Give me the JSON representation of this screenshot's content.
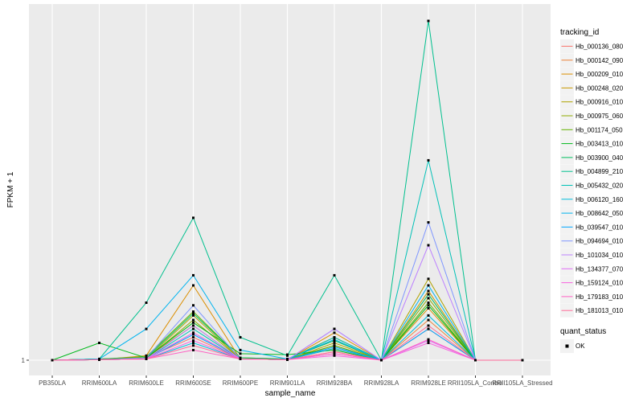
{
  "chart_data": {
    "type": "line",
    "title": "",
    "xlabel": "sample_name",
    "ylabel": "FPKM + 1",
    "y_tick_labels": [
      "1"
    ],
    "y_scale": "log",
    "categories": [
      "PB350LA",
      "RRIM600LA",
      "RRIM600LE",
      "RRIM600SE",
      "RRIM600PE",
      "RRIM901LA",
      "RRIM928BA",
      "RRIM928LA",
      "RRIM928LE",
      "RRII105LA_Control",
      "RRII105LA_Stressed"
    ],
    "legend_title": "tracking_id",
    "legend2_title": "quant_status",
    "legend2_items": [
      "OK"
    ],
    "series": [
      {
        "name": "Hb_000136_080",
        "color": "#F8766D",
        "values": [
          1,
          1.05,
          1.1,
          2.5,
          1.05,
          1.02,
          1.4,
          1,
          3.5,
          1,
          1
        ]
      },
      {
        "name": "Hb_000142_090",
        "color": "#EC8239",
        "values": [
          1,
          1.02,
          1.05,
          3,
          1.05,
          1.02,
          1.6,
          1,
          5,
          1,
          1
        ]
      },
      {
        "name": "Hb_000209_010",
        "color": "#DB8E00",
        "values": [
          1,
          1.02,
          1.2,
          20,
          1.05,
          1.02,
          3,
          1,
          8,
          1,
          1
        ]
      },
      {
        "name": "Hb_000248_020",
        "color": "#C79800",
        "values": [
          1,
          1.05,
          1.1,
          4,
          1.05,
          1.05,
          2.5,
          1,
          16,
          1,
          1
        ]
      },
      {
        "name": "Hb_000916_010",
        "color": "#AEA200",
        "values": [
          1,
          1.02,
          1.05,
          6,
          1.05,
          1.02,
          2,
          1,
          26,
          1,
          1
        ]
      },
      {
        "name": "Hb_000975_060",
        "color": "#8FAA00",
        "values": [
          1,
          1.02,
          1.05,
          5,
          1.05,
          1.02,
          1.8,
          1,
          12,
          1,
          1
        ]
      },
      {
        "name": "Hb_001174_050",
        "color": "#64B200",
        "values": [
          1,
          1.05,
          1.15,
          7,
          1.1,
          1.05,
          1.8,
          1,
          10,
          1,
          1
        ]
      },
      {
        "name": "Hb_003413_010",
        "color": "#00B81B",
        "values": [
          1,
          2,
          1.1,
          4.5,
          1.3,
          1.25,
          1.5,
          1,
          9,
          1,
          1
        ]
      },
      {
        "name": "Hb_003900_040",
        "color": "#00BD5C",
        "values": [
          1,
          1.05,
          1.1,
          6.5,
          1.1,
          1.05,
          2.2,
          1,
          14,
          1,
          1
        ]
      },
      {
        "name": "Hb_004899_210",
        "color": "#00C08E",
        "values": [
          1,
          1.05,
          10,
          300,
          2.5,
          1.2,
          30,
          1,
          800000,
          1,
          1
        ]
      },
      {
        "name": "Hb_005432_020",
        "color": "#00C1B7",
        "values": [
          1,
          1.02,
          1.05,
          3.5,
          1.05,
          1.02,
          2.5,
          1,
          3000,
          1,
          1
        ]
      },
      {
        "name": "Hb_006120_160",
        "color": "#00BDDC",
        "values": [
          1,
          1.02,
          1.05,
          2,
          1.05,
          1.02,
          1.6,
          1,
          6,
          1,
          1
        ]
      },
      {
        "name": "Hb_008642_050",
        "color": "#00B4EF",
        "values": [
          1,
          1.05,
          3.5,
          30,
          1.5,
          1.05,
          2.3,
          1,
          20,
          1,
          1
        ]
      },
      {
        "name": "Hb_039547_010",
        "color": "#00A5FF",
        "values": [
          1,
          1.02,
          1.05,
          2.8,
          1.05,
          1.02,
          1.7,
          1,
          3.5,
          1,
          1
        ]
      },
      {
        "name": "Hb_094694_010",
        "color": "#7F96FF",
        "values": [
          1,
          1.02,
          1.1,
          9,
          1.05,
          1.02,
          3.5,
          1,
          250,
          1,
          1
        ]
      },
      {
        "name": "Hb_101034_010",
        "color": "#BC81FF",
        "values": [
          1,
          1.02,
          1.05,
          4,
          1.05,
          1.02,
          3.5,
          1,
          100,
          1,
          1
        ]
      },
      {
        "name": "Hb_134377_070",
        "color": "#E16EF7",
        "values": [
          1,
          1.02,
          1.05,
          3,
          1.05,
          1.02,
          1.3,
          1,
          2.2,
          1,
          1
        ]
      },
      {
        "name": "Hb_159124_010",
        "color": "#F863DF",
        "values": [
          1,
          1.02,
          1.05,
          2.2,
          1.05,
          1.02,
          1.2,
          1,
          2,
          1,
          1
        ]
      },
      {
        "name": "Hb_179183_010",
        "color": "#FF61C3",
        "values": [
          1,
          1.02,
          1.05,
          1.5,
          1.05,
          1.02,
          1.3,
          1,
          2.3,
          1,
          1
        ]
      },
      {
        "name": "Hb_181013_010",
        "color": "#FF6A98",
        "values": [
          1,
          1.02,
          1.05,
          1.8,
          1.05,
          1.02,
          1.4,
          1,
          4,
          1,
          1
        ]
      }
    ]
  }
}
